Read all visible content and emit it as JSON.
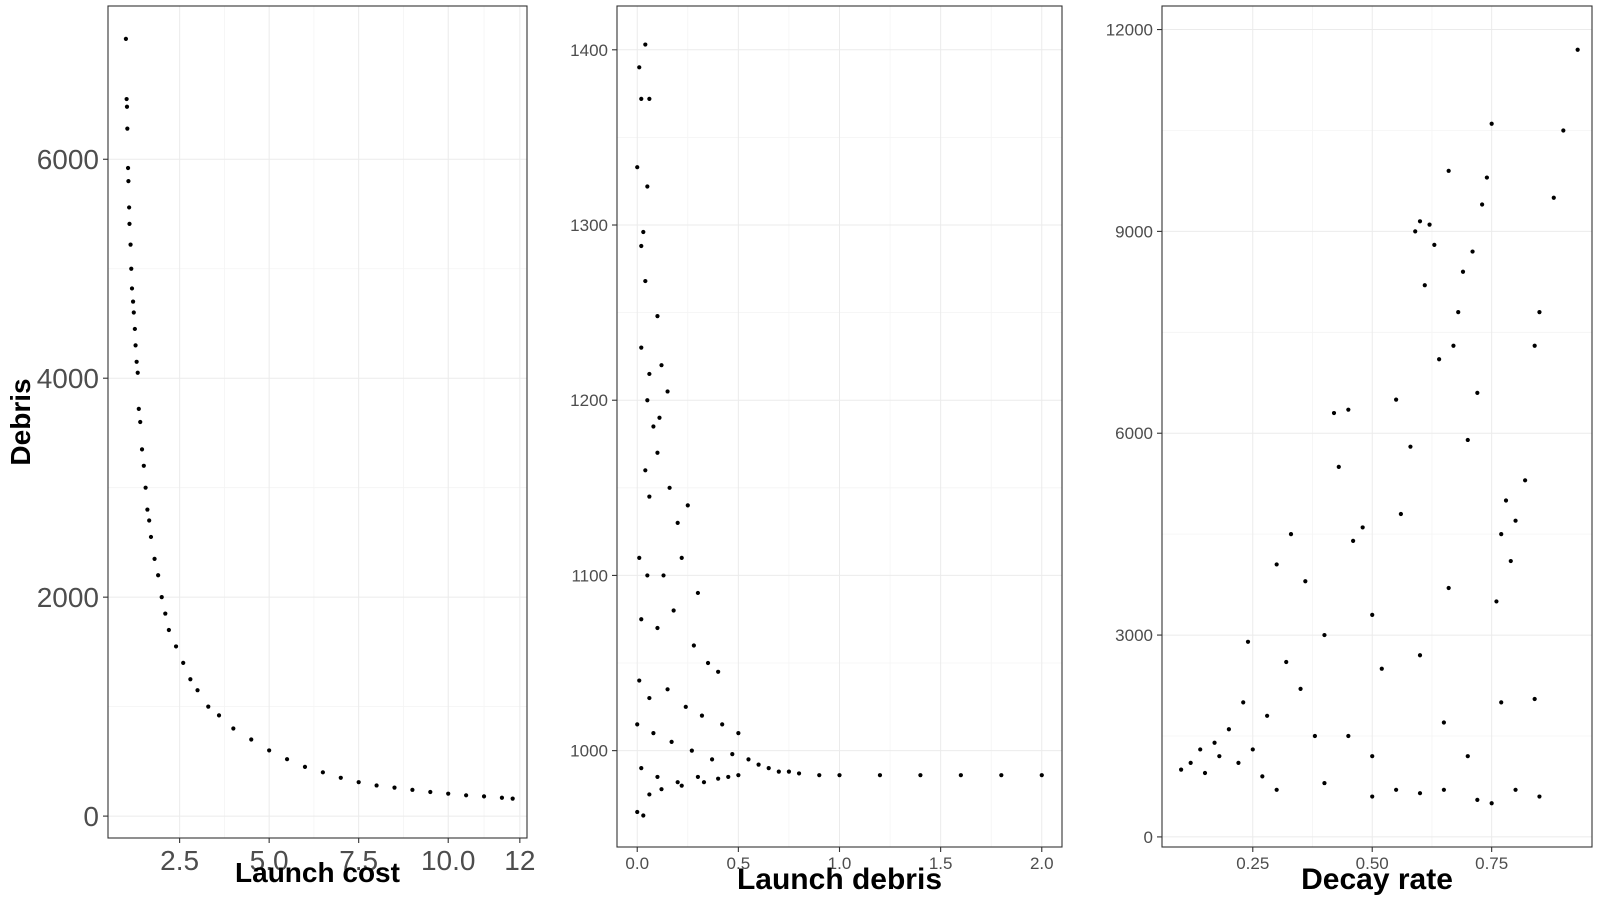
{
  "chart_data": [
    {
      "type": "scatter",
      "xlabel": "Launch cost",
      "ylabel": "Debris",
      "xticks": [
        "2.5",
        "5.0",
        "7.5",
        "10.0",
        "12"
      ],
      "xtick_values": [
        2.5,
        5.0,
        7.5,
        10.0,
        12.0
      ],
      "yticks": [
        "0",
        "2000",
        "4000",
        "6000"
      ],
      "ytick_values": [
        0,
        2000,
        4000,
        6000
      ],
      "xlim": [
        0.5,
        12.2
      ],
      "ylim": [
        -200,
        7400
      ],
      "grid": true,
      "legend": "none",
      "description_points": "approx. y = 1800 / x curve from x=1.0 to x=11.8 with spread",
      "series": [
        {
          "points": [
            [
              1.0,
              7100
            ],
            [
              1.02,
              6550
            ],
            [
              1.03,
              6480
            ],
            [
              1.04,
              6280
            ],
            [
              1.06,
              5920
            ],
            [
              1.07,
              5800
            ],
            [
              1.09,
              5560
            ],
            [
              1.1,
              5410
            ],
            [
              1.13,
              5220
            ],
            [
              1.15,
              5000
            ],
            [
              1.17,
              4820
            ],
            [
              1.2,
              4700
            ],
            [
              1.22,
              4600
            ],
            [
              1.25,
              4450
            ],
            [
              1.27,
              4300
            ],
            [
              1.3,
              4150
            ],
            [
              1.33,
              4050
            ],
            [
              1.36,
              3720
            ],
            [
              1.4,
              3600
            ],
            [
              1.45,
              3350
            ],
            [
              1.5,
              3200
            ],
            [
              1.55,
              3000
            ],
            [
              1.6,
              2800
            ],
            [
              1.65,
              2700
            ],
            [
              1.7,
              2550
            ],
            [
              1.8,
              2350
            ],
            [
              1.9,
              2200
            ],
            [
              2.0,
              2000
            ],
            [
              2.1,
              1850
            ],
            [
              2.2,
              1700
            ],
            [
              2.4,
              1550
            ],
            [
              2.6,
              1400
            ],
            [
              2.8,
              1250
            ],
            [
              3.0,
              1150
            ],
            [
              3.3,
              1000
            ],
            [
              3.6,
              920
            ],
            [
              4.0,
              800
            ],
            [
              4.5,
              700
            ],
            [
              5.0,
              600
            ],
            [
              5.5,
              520
            ],
            [
              6.0,
              450
            ],
            [
              6.5,
              400
            ],
            [
              7.0,
              350
            ],
            [
              7.5,
              310
            ],
            [
              8.0,
              280
            ],
            [
              8.5,
              260
            ],
            [
              9.0,
              240
            ],
            [
              9.5,
              220
            ],
            [
              10.0,
              205
            ],
            [
              10.5,
              190
            ],
            [
              11.0,
              180
            ],
            [
              11.5,
              168
            ],
            [
              11.8,
              160
            ]
          ]
        }
      ]
    },
    {
      "type": "scatter",
      "xlabel": "Launch debris",
      "ylabel": "",
      "xticks": [
        "0.0",
        "0.5",
        "1.0",
        "1.5",
        "2.0"
      ],
      "xtick_values": [
        0.0,
        0.5,
        1.0,
        1.5,
        2.0
      ],
      "yticks": [
        "1000",
        "1100",
        "1200",
        "1300",
        "1400"
      ],
      "ytick_values": [
        1000,
        1100,
        1200,
        1300,
        1400
      ],
      "xlim": [
        -0.1,
        2.1
      ],
      "ylim": [
        945,
        1425
      ],
      "grid": true,
      "legend": "none",
      "series": [
        {
          "points": [
            [
              0.0,
              1333
            ],
            [
              0.01,
              1390
            ],
            [
              0.02,
              1372
            ],
            [
              0.04,
              1403
            ],
            [
              0.06,
              1372
            ],
            [
              0.05,
              1322
            ],
            [
              0.02,
              1288
            ],
            [
              0.03,
              1296
            ],
            [
              0.04,
              1268
            ],
            [
              0.1,
              1248
            ],
            [
              0.02,
              1230
            ],
            [
              0.06,
              1215
            ],
            [
              0.12,
              1220
            ],
            [
              0.15,
              1205
            ],
            [
              0.05,
              1200
            ],
            [
              0.08,
              1185
            ],
            [
              0.11,
              1190
            ],
            [
              0.1,
              1170
            ],
            [
              0.04,
              1160
            ],
            [
              0.06,
              1145
            ],
            [
              0.16,
              1150
            ],
            [
              0.2,
              1130
            ],
            [
              0.25,
              1140
            ],
            [
              0.01,
              1110
            ],
            [
              0.05,
              1100
            ],
            [
              0.13,
              1100
            ],
            [
              0.22,
              1110
            ],
            [
              0.3,
              1090
            ],
            [
              0.02,
              1075
            ],
            [
              0.1,
              1070
            ],
            [
              0.18,
              1080
            ],
            [
              0.28,
              1060
            ],
            [
              0.35,
              1050
            ],
            [
              0.4,
              1045
            ],
            [
              0.01,
              1040
            ],
            [
              0.06,
              1030
            ],
            [
              0.15,
              1035
            ],
            [
              0.24,
              1025
            ],
            [
              0.32,
              1020
            ],
            [
              0.42,
              1015
            ],
            [
              0.5,
              1010
            ],
            [
              0.0,
              1015
            ],
            [
              0.08,
              1010
            ],
            [
              0.17,
              1005
            ],
            [
              0.27,
              1000
            ],
            [
              0.37,
              995
            ],
            [
              0.47,
              998
            ],
            [
              0.55,
              995
            ],
            [
              0.6,
              992
            ],
            [
              0.65,
              990
            ],
            [
              0.7,
              988
            ],
            [
              0.75,
              988
            ],
            [
              0.02,
              990
            ],
            [
              0.1,
              985
            ],
            [
              0.2,
              982
            ],
            [
              0.3,
              985
            ],
            [
              0.4,
              984
            ],
            [
              0.5,
              986
            ],
            [
              0.0,
              965
            ],
            [
              0.03,
              963
            ],
            [
              0.06,
              975
            ],
            [
              0.12,
              978
            ],
            [
              0.22,
              980
            ],
            [
              0.33,
              982
            ],
            [
              0.45,
              985
            ],
            [
              0.8,
              987
            ],
            [
              0.9,
              986
            ],
            [
              1.0,
              986
            ],
            [
              1.2,
              986
            ],
            [
              1.4,
              986
            ],
            [
              1.6,
              986
            ],
            [
              1.8,
              986
            ],
            [
              2.0,
              986
            ]
          ]
        }
      ]
    },
    {
      "type": "scatter",
      "xlabel": "Decay rate",
      "ylabel": "",
      "xticks": [
        "0.25",
        "0.50",
        "0.75"
      ],
      "xtick_values": [
        0.25,
        0.5,
        0.75
      ],
      "yticks": [
        "0",
        "3000",
        "6000",
        "9000",
        "12000"
      ],
      "ytick_values": [
        0,
        3000,
        6000,
        9000,
        12000
      ],
      "xlim": [
        0.06,
        0.96
      ],
      "ylim": [
        -150,
        12350
      ],
      "grid": true,
      "legend": "none",
      "series": [
        {
          "points": [
            [
              0.1,
              1000
            ],
            [
              0.12,
              1100
            ],
            [
              0.14,
              1300
            ],
            [
              0.15,
              950
            ],
            [
              0.17,
              1400
            ],
            [
              0.18,
              1200
            ],
            [
              0.2,
              1600
            ],
            [
              0.22,
              1100
            ],
            [
              0.23,
              2000
            ],
            [
              0.24,
              2900
            ],
            [
              0.25,
              1300
            ],
            [
              0.27,
              900
            ],
            [
              0.28,
              1800
            ],
            [
              0.3,
              4050
            ],
            [
              0.32,
              2600
            ],
            [
              0.33,
              4500
            ],
            [
              0.35,
              2200
            ],
            [
              0.36,
              3800
            ],
            [
              0.38,
              1500
            ],
            [
              0.4,
              3000
            ],
            [
              0.42,
              6300
            ],
            [
              0.43,
              5500
            ],
            [
              0.45,
              6350
            ],
            [
              0.46,
              4400
            ],
            [
              0.48,
              4600
            ],
            [
              0.5,
              3300
            ],
            [
              0.52,
              2500
            ],
            [
              0.55,
              6500
            ],
            [
              0.56,
              4800
            ],
            [
              0.58,
              5800
            ],
            [
              0.59,
              9000
            ],
            [
              0.6,
              9150
            ],
            [
              0.61,
              8200
            ],
            [
              0.62,
              9100
            ],
            [
              0.63,
              8800
            ],
            [
              0.64,
              7100
            ],
            [
              0.66,
              9900
            ],
            [
              0.67,
              7300
            ],
            [
              0.68,
              7800
            ],
            [
              0.69,
              8400
            ],
            [
              0.7,
              5900
            ],
            [
              0.71,
              8700
            ],
            [
              0.72,
              6600
            ],
            [
              0.73,
              9400
            ],
            [
              0.74,
              9800
            ],
            [
              0.75,
              10600
            ],
            [
              0.76,
              3500
            ],
            [
              0.77,
              4500
            ],
            [
              0.78,
              5000
            ],
            [
              0.79,
              4100
            ],
            [
              0.8,
              4700
            ],
            [
              0.82,
              5300
            ],
            [
              0.84,
              7300
            ],
            [
              0.85,
              7800
            ],
            [
              0.88,
              9500
            ],
            [
              0.9,
              10500
            ],
            [
              0.93,
              11700
            ],
            [
              0.3,
              700
            ],
            [
              0.4,
              800
            ],
            [
              0.5,
              600
            ],
            [
              0.55,
              700
            ],
            [
              0.6,
              650
            ],
            [
              0.65,
              700
            ],
            [
              0.7,
              1200
            ],
            [
              0.72,
              550
            ],
            [
              0.75,
              500
            ],
            [
              0.77,
              2000
            ],
            [
              0.8,
              700
            ],
            [
              0.84,
              2050
            ],
            [
              0.85,
              600
            ],
            [
              0.45,
              1500
            ],
            [
              0.5,
              1200
            ],
            [
              0.6,
              2700
            ],
            [
              0.65,
              1700
            ],
            [
              0.66,
              3700
            ]
          ]
        }
      ]
    }
  ]
}
